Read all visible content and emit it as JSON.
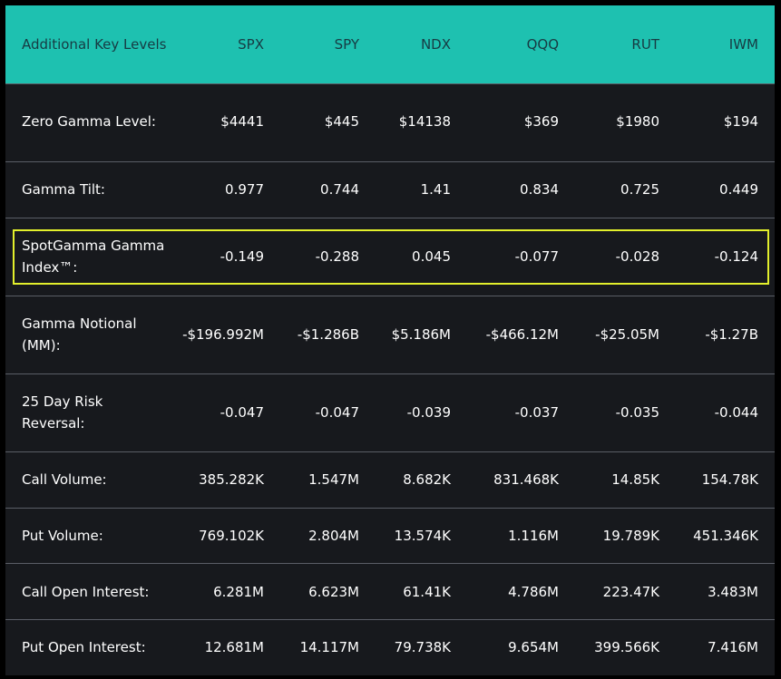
{
  "header": {
    "label": "Additional Key Levels",
    "columns": [
      "SPX",
      "SPY",
      "NDX",
      "QQQ",
      "RUT",
      "IWM"
    ]
  },
  "rows": [
    {
      "label": "Zero Gamma Level:",
      "values": [
        "$4441",
        "$445",
        "$14138",
        "$369",
        "$1980",
        "$194"
      ]
    },
    {
      "label": "Gamma Tilt:",
      "values": [
        "0.977",
        "0.744",
        "1.41",
        "0.834",
        "0.725",
        "0.449"
      ]
    },
    {
      "label": "SpotGamma Gamma Index™:",
      "values": [
        "-0.149",
        "-0.288",
        "0.045",
        "-0.077",
        "-0.028",
        "-0.124"
      ],
      "highlighted": true
    },
    {
      "label": "Gamma Notional (MM):",
      "values": [
        "-$196.992M",
        "-$1.286B",
        "$5.186M",
        "-$466.12M",
        "-$25.05M",
        "-$1.27B"
      ]
    },
    {
      "label": "25 Day Risk Reversal:",
      "values": [
        "-0.047",
        "-0.047",
        "-0.039",
        "-0.037",
        "-0.035",
        "-0.044"
      ]
    },
    {
      "label": "Call Volume:",
      "values": [
        "385.282K",
        "1.547M",
        "8.682K",
        "831.468K",
        "14.85K",
        "154.78K"
      ]
    },
    {
      "label": "Put Volume:",
      "values": [
        "769.102K",
        "2.804M",
        "13.574K",
        "1.116M",
        "19.789K",
        "451.346K"
      ]
    },
    {
      "label": "Call Open Interest:",
      "values": [
        "6.281M",
        "6.623M",
        "61.41K",
        "4.786M",
        "223.47K",
        "3.483M"
      ]
    },
    {
      "label": "Put Open Interest:",
      "values": [
        "12.681M",
        "14.117M",
        "79.738K",
        "9.654M",
        "399.566K",
        "7.416M"
      ]
    }
  ],
  "colors": {
    "header_bg": "#1ec1b0",
    "body_bg": "#17191d",
    "highlight_border": "#e2ef2c"
  }
}
